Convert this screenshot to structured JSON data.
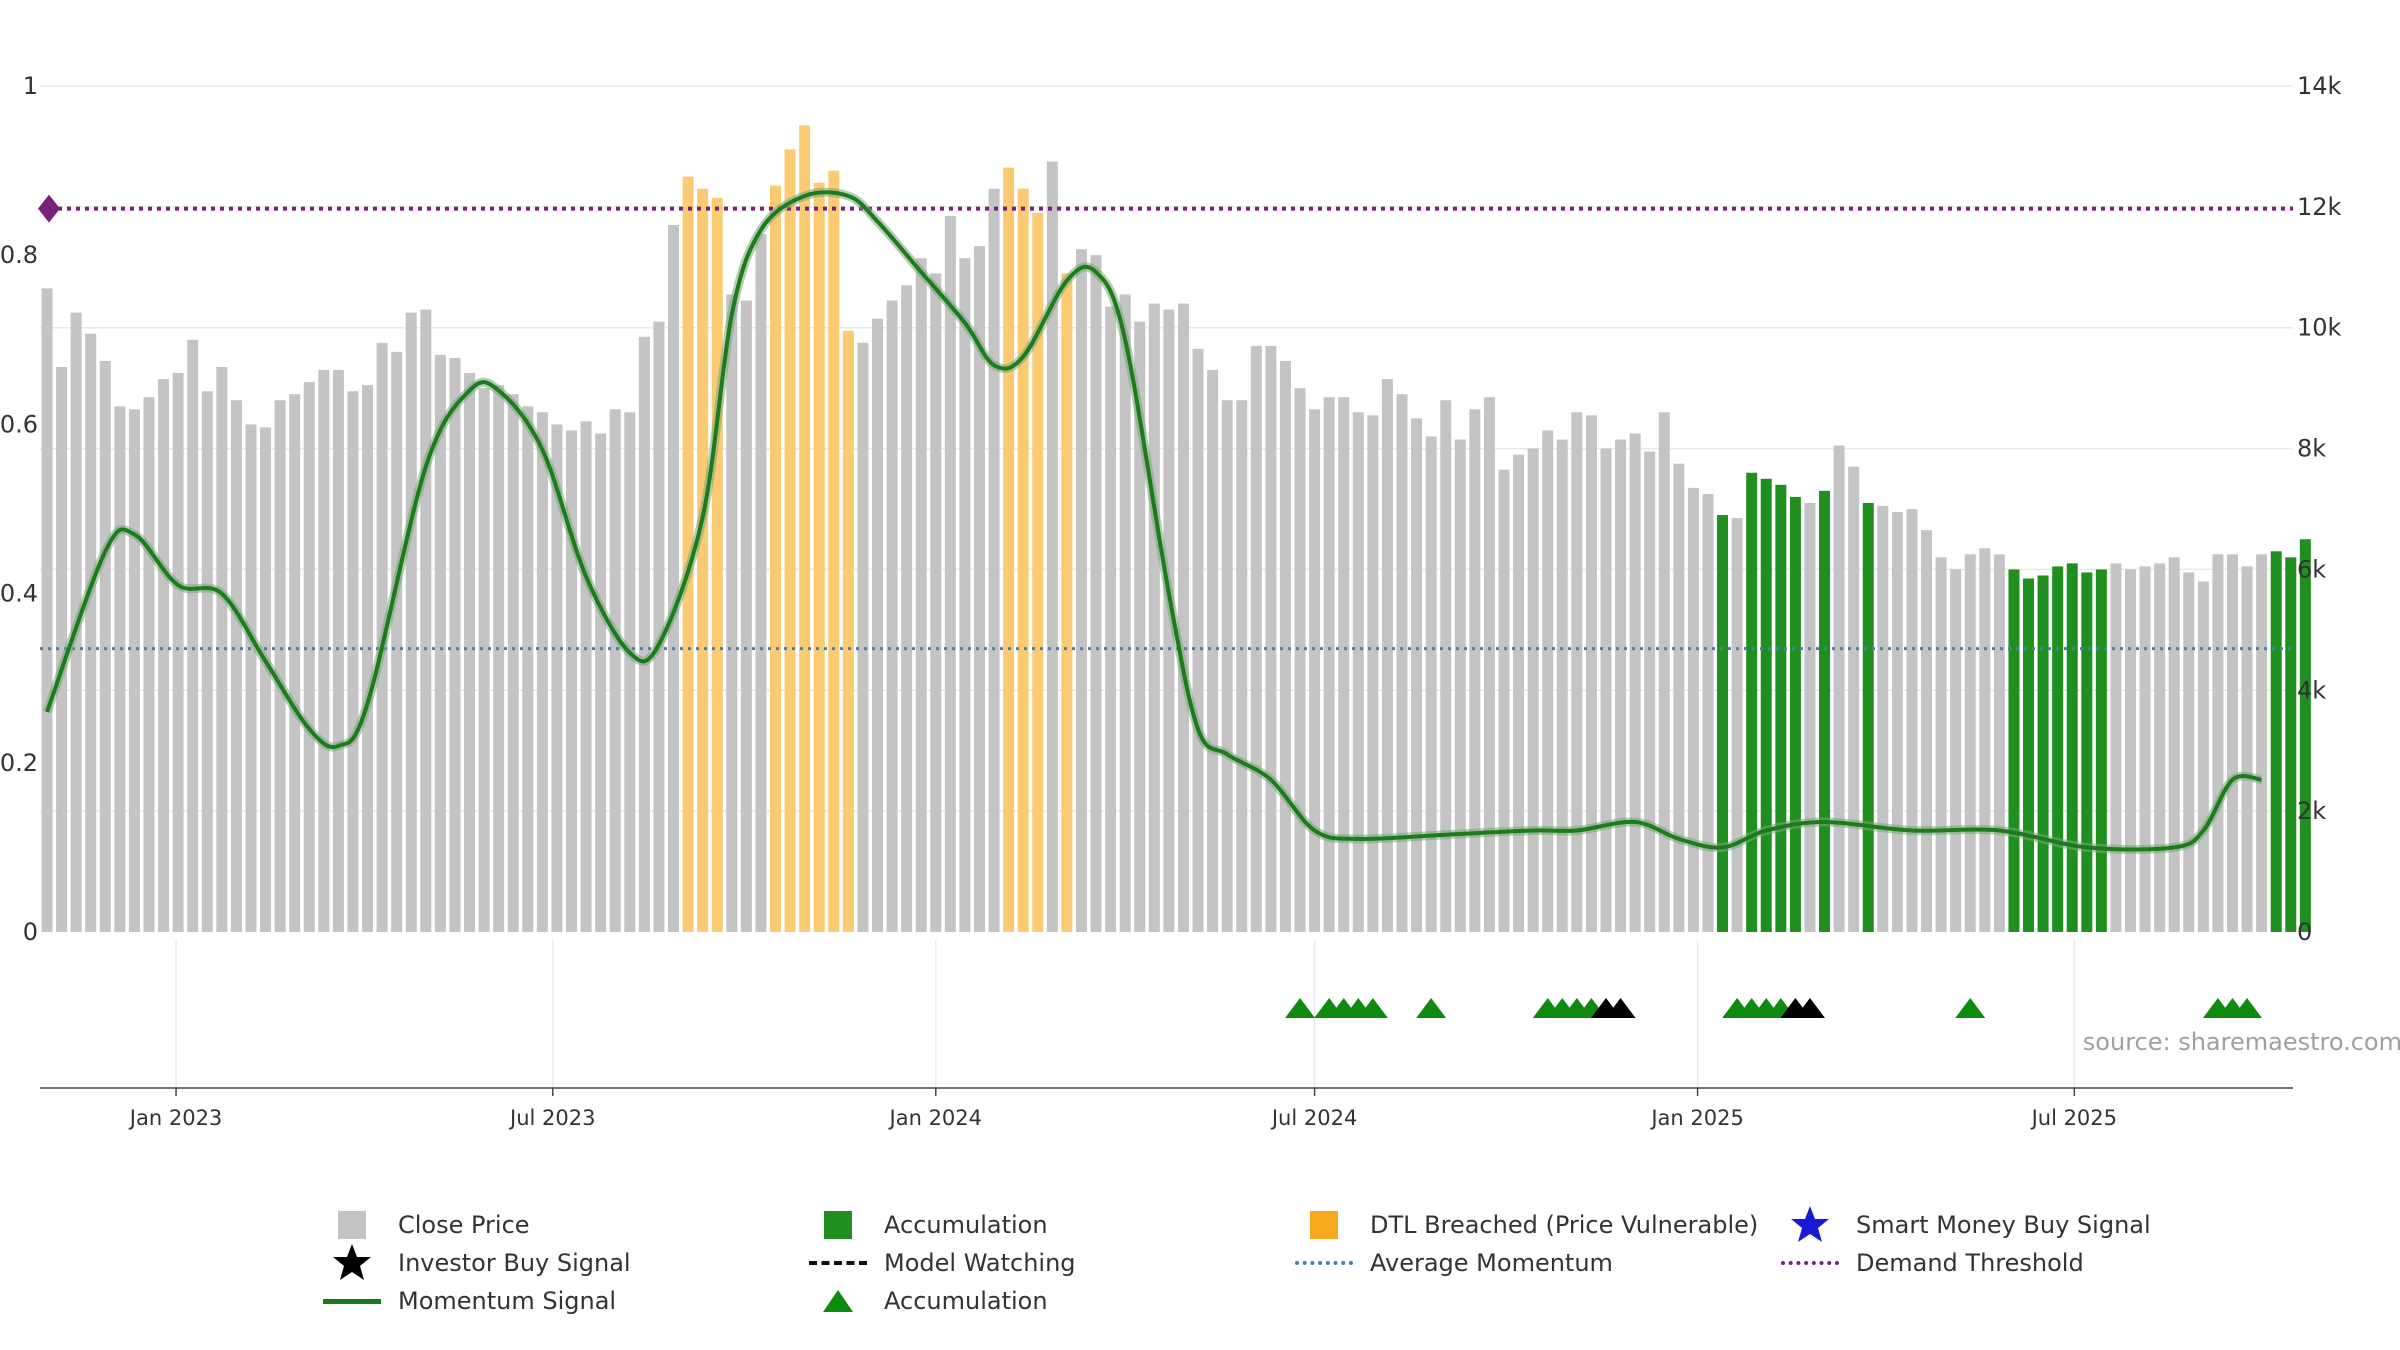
{
  "chart_data": {
    "type": "bar",
    "source_note": "source: sharemaestro.com",
    "x_tick_labels": [
      "Jan 2023",
      "Jul 2023",
      "Jan 2024",
      "Jul 2024",
      "Jan 2025",
      "Jul 2025"
    ],
    "left_axis": {
      "ticks": [
        "0",
        "0.2",
        "0.4",
        "0.6",
        "0.8",
        "1"
      ],
      "range": [
        0,
        1
      ]
    },
    "right_axis": {
      "ticks": [
        "0",
        "2k",
        "4k",
        "6k",
        "8k",
        "10k",
        "12k",
        "14k"
      ],
      "range": [
        0,
        14000
      ]
    },
    "grid": true,
    "legend_position": "bottom",
    "colors": {
      "close_price": "#c4c4c4",
      "accumulation": "#1f8f1f",
      "dtl_breached": "#fbcb73",
      "momentum": "#1d7a1d",
      "average_momentum": "#4a7fa8",
      "demand_threshold": "#7a1f7a",
      "investor_buy": "#000000",
      "smart_money": "#1a1ad6",
      "triangle_green": "#0e8a0e"
    },
    "close_price_series": {
      "name": "Close Price",
      "start_date": "2022-10-31",
      "interval_days": 7,
      "values": [
        10650,
        9350,
        10250,
        9900,
        9450,
        8700,
        8650,
        8850,
        9150,
        9250,
        9800,
        8950,
        9350,
        8800,
        8400,
        8350,
        8800,
        8900,
        9100,
        9300,
        9300,
        8950,
        9050,
        9750,
        9600,
        10250,
        10300,
        9550,
        9500,
        9250,
        9000,
        9050,
        8900,
        8700,
        8600,
        8400,
        8300,
        8450,
        8250,
        8650,
        8600,
        9850,
        10100,
        11700,
        12500,
        12300,
        12150,
        10550,
        10450,
        11550,
        12350,
        12950,
        13350,
        12400,
        12600,
        9950,
        9750,
        10150,
        10450,
        10700,
        11150,
        10900,
        11850,
        11150,
        11350,
        12300,
        12650,
        12300,
        11900,
        12750,
        10900,
        11300,
        11200,
        10350,
        10550,
        10100,
        10400,
        10300,
        10400,
        9650,
        9300,
        8800,
        8800,
        9700,
        9700,
        9450,
        9000,
        8650,
        8850,
        8850,
        8600,
        8550,
        9150,
        8900,
        8500,
        8200,
        8800,
        8150,
        8650,
        8850,
        7650,
        7900,
        8000,
        8300,
        8150,
        8600,
        8550,
        8000,
        8150,
        8250,
        7950,
        8600,
        7750,
        7350,
        7250,
        6900,
        6850,
        7600,
        7500,
        7400,
        7200,
        7100,
        7300,
        8050,
        7700,
        7100,
        7050,
        6950,
        7000,
        6650,
        6200,
        6000,
        6250,
        6350,
        6250,
        6000,
        5850,
        5900,
        6050,
        6100,
        5950,
        6000,
        6100,
        6000,
        6050,
        6100,
        6200,
        5950,
        5800,
        6250,
        6250,
        6050,
        6250,
        6300,
        6200,
        6500
      ],
      "accumulation_indices": [
        115,
        117,
        118,
        119,
        120,
        122,
        125,
        135,
        136,
        137,
        138,
        139,
        140,
        141,
        153,
        154,
        155,
        156,
        157,
        158,
        159,
        174,
        187,
        188,
        189
      ],
      "dtl_breached_indices": [
        44,
        45,
        46,
        50,
        51,
        52,
        53,
        54,
        55,
        66,
        67,
        68,
        70
      ]
    },
    "momentum_series": {
      "name": "Momentum Signal",
      "points": [
        [
          "2022-10-31",
          0.26
        ],
        [
          "2022-11-28",
          0.45
        ],
        [
          "2022-12-12",
          0.47
        ],
        [
          "2023-01-02",
          0.41
        ],
        [
          "2023-01-23",
          0.4
        ],
        [
          "2023-02-13",
          0.32
        ],
        [
          "2023-03-06",
          0.24
        ],
        [
          "2023-03-20",
          0.22
        ],
        [
          "2023-04-03",
          0.27
        ],
        [
          "2023-05-01",
          0.55
        ],
        [
          "2023-05-22",
          0.64
        ],
        [
          "2023-06-05",
          0.64
        ],
        [
          "2023-06-26",
          0.57
        ],
        [
          "2023-07-17",
          0.42
        ],
        [
          "2023-08-07",
          0.33
        ],
        [
          "2023-08-21",
          0.34
        ],
        [
          "2023-09-11",
          0.49
        ],
        [
          "2023-09-25",
          0.73
        ],
        [
          "2023-10-09",
          0.83
        ],
        [
          "2023-10-30",
          0.87
        ],
        [
          "2023-11-20",
          0.87
        ],
        [
          "2023-12-04",
          0.84
        ],
        [
          "2023-12-25",
          0.78
        ],
        [
          "2024-01-15",
          0.72
        ],
        [
          "2024-01-29",
          0.67
        ],
        [
          "2024-02-12",
          0.68
        ],
        [
          "2024-03-04",
          0.77
        ],
        [
          "2024-03-18",
          0.78
        ],
        [
          "2024-04-01",
          0.7
        ],
        [
          "2024-04-22",
          0.4
        ],
        [
          "2024-05-06",
          0.24
        ],
        [
          "2024-05-20",
          0.21
        ],
        [
          "2024-06-10",
          0.18
        ],
        [
          "2024-07-01",
          0.12
        ],
        [
          "2024-07-22",
          0.11
        ],
        [
          "2024-09-02",
          0.115
        ],
        [
          "2024-10-14",
          0.12
        ],
        [
          "2024-11-04",
          0.12
        ],
        [
          "2024-12-02",
          0.13
        ],
        [
          "2024-12-23",
          0.11
        ],
        [
          "2025-01-13",
          0.1
        ],
        [
          "2025-02-03",
          0.12
        ],
        [
          "2025-03-03",
          0.13
        ],
        [
          "2025-04-14",
          0.12
        ],
        [
          "2025-05-26",
          0.12
        ],
        [
          "2025-07-07",
          0.1
        ],
        [
          "2025-08-18",
          0.1
        ],
        [
          "2025-09-01",
          0.12
        ],
        [
          "2025-09-15",
          0.18
        ],
        [
          "2025-09-29",
          0.18
        ]
      ]
    },
    "average_momentum": {
      "name": "Average Momentum",
      "value": 0.335
    },
    "demand_threshold": {
      "name": "Demand Threshold",
      "value": 0.855
    },
    "signals": {
      "green_triangles": [
        "2024-06-24",
        "2024-07-08",
        "2024-07-15",
        "2024-07-22",
        "2024-07-29",
        "2024-08-26",
        "2024-10-21",
        "2024-10-28",
        "2024-11-04",
        "2024-11-11",
        "2025-01-20",
        "2025-01-27",
        "2025-02-03",
        "2025-02-10",
        "2025-05-12",
        "2025-09-08",
        "2025-09-15",
        "2025-09-22"
      ],
      "black_triangles": [
        "2024-11-18",
        "2024-11-25",
        "2025-02-17",
        "2025-02-24"
      ]
    }
  },
  "legend": {
    "close_price": "Close Price",
    "accumulation_bar": "Accumulation",
    "dtl_breached": "DTL Breached (Price Vulnerable)",
    "smart_money": "Smart Money Buy Signal",
    "investor_buy": "Investor Buy Signal",
    "model_watching": "Model Watching",
    "average_momentum": "Average Momentum",
    "demand_threshold": "Demand Threshold",
    "momentum": "Momentum Signal",
    "accumulation_triangle": "Accumulation"
  }
}
